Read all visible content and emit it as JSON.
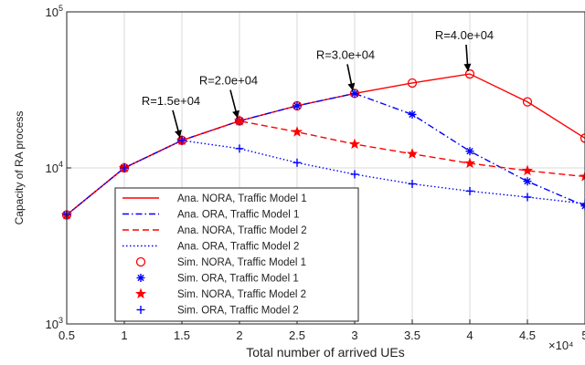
{
  "chart_data": {
    "type": "line",
    "xlabel": "Total number of arrived UEs",
    "ylabel": "Capacity of RA process",
    "x_multiplier_label": "×10⁴",
    "yscale": "log",
    "xlim": [
      0.5,
      5
    ],
    "ylim": [
      1000,
      100000
    ],
    "x_ticks": [
      0.5,
      1,
      1.5,
      2,
      2.5,
      3,
      3.5,
      4,
      4.5,
      5
    ],
    "x_tick_labels": [
      "0.5",
      "1",
      "1.5",
      "2",
      "2.5",
      "3",
      "3.5",
      "4",
      "4.5",
      "5"
    ],
    "y_ticks": [
      1000,
      10000,
      100000
    ],
    "y_tick_bases": [
      "10",
      "10",
      "10"
    ],
    "y_tick_exponents": [
      "3",
      "4",
      "5"
    ],
    "grid": true,
    "legend_position": "bottom-left",
    "series": [
      {
        "name": "Ana. NORA, Traffic Model 1",
        "color": "#ff0000",
        "line": "solid",
        "marker": "none",
        "x": [
          0.5,
          1,
          1.5,
          2,
          2.5,
          3,
          3.5,
          4,
          4.5,
          5
        ],
        "y": [
          5000,
          10000,
          15000,
          20000,
          25000,
          30000,
          35000,
          40000,
          26500,
          15500
        ]
      },
      {
        "name": "Ana. ORA, Traffic Model 1",
        "color": "#0000ff",
        "line": "dashdot",
        "marker": "none",
        "x": [
          0.5,
          1,
          1.5,
          2,
          2.5,
          3,
          3.5,
          4,
          4.5,
          5
        ],
        "y": [
          5000,
          10000,
          15000,
          20000,
          25000,
          30000,
          22000,
          12800,
          8200,
          5700
        ]
      },
      {
        "name": "Ana. NORA, Traffic Model 2",
        "color": "#ff0000",
        "line": "dashed",
        "marker": "none",
        "x": [
          0.5,
          1,
          1.5,
          2,
          2.5,
          3,
          3.5,
          4,
          4.5,
          5
        ],
        "y": [
          5000,
          10000,
          15000,
          20000,
          17000,
          14200,
          12300,
          10700,
          9600,
          8800
        ]
      },
      {
        "name": "Ana. ORA, Traffic Model 2",
        "color": "#0000ff",
        "line": "dotted",
        "marker": "none",
        "x": [
          0.5,
          1,
          1.5,
          2,
          2.5,
          3,
          3.5,
          4,
          4.5,
          5
        ],
        "y": [
          5000,
          10000,
          15000,
          13300,
          10800,
          9100,
          7900,
          7100,
          6500,
          5900
        ]
      },
      {
        "name": "Sim. NORA, Traffic Model 1",
        "color": "#ff0000",
        "line": "none",
        "marker": "circle",
        "x": [
          0.5,
          1,
          1.5,
          2,
          2.5,
          3,
          3.5,
          4,
          4.5,
          5
        ],
        "y": [
          5000,
          10000,
          15000,
          20000,
          25000,
          30000,
          35000,
          40000,
          26500,
          15500
        ]
      },
      {
        "name": "Sim. ORA, Traffic Model 1",
        "color": "#0000ff",
        "line": "none",
        "marker": "asterisk",
        "x": [
          0.5,
          1,
          1.5,
          2,
          2.5,
          3,
          3.5,
          4,
          4.5,
          5
        ],
        "y": [
          5000,
          10000,
          15000,
          20000,
          25000,
          30000,
          22000,
          12800,
          8200,
          5700
        ]
      },
      {
        "name": "Sim. NORA, Traffic Model 2",
        "color": "#ff0000",
        "line": "none",
        "marker": "star",
        "x": [
          0.5,
          1,
          1.5,
          2,
          2.5,
          3,
          3.5,
          4,
          4.5,
          5
        ],
        "y": [
          5000,
          10000,
          15000,
          20000,
          17000,
          14200,
          12300,
          10700,
          9600,
          8800
        ]
      },
      {
        "name": "Sim. ORA, Traffic Model 2",
        "color": "#0000ff",
        "line": "none",
        "marker": "plus",
        "x": [
          0.5,
          1,
          1.5,
          2,
          2.5,
          3,
          3.5,
          4,
          4.5,
          5
        ],
        "y": [
          5000,
          10000,
          15000,
          13300,
          10800,
          9100,
          7900,
          7100,
          6500,
          5900
        ]
      }
    ],
    "annotations": [
      {
        "text": "R=1.5e+04",
        "x": 1.5,
        "y": 15000
      },
      {
        "text": "R=2.0e+04",
        "x": 2,
        "y": 20000
      },
      {
        "text": "R=3.0e+04",
        "x": 3,
        "y": 30000
      },
      {
        "text": "R=4.0e+04",
        "x": 4,
        "y": 40000
      }
    ]
  }
}
